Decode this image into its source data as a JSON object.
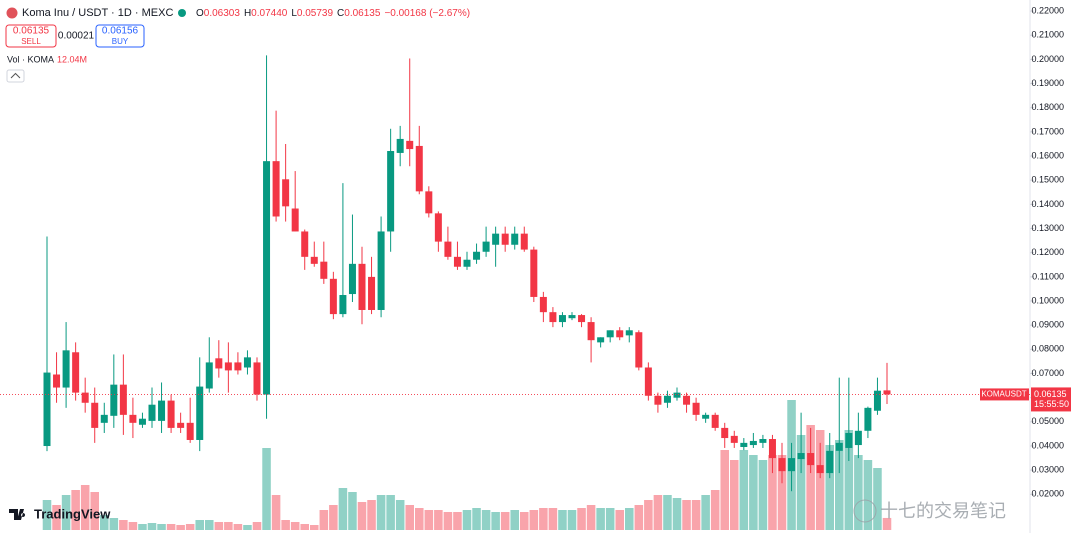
{
  "chart_data": {
    "type": "candlestick",
    "title": "Koma Inu / USDT · 1D · MEXC",
    "ohlc_labels": [
      "O",
      "H",
      "L",
      "C"
    ],
    "ohlc_values": [
      "0.06303",
      "0.07440",
      "0.05739",
      "0.06135"
    ],
    "change": "−0.00168 (−2.67%)",
    "sell": {
      "price": "0.06135",
      "label": "SELL"
    },
    "spread": "0.00021",
    "buy": {
      "price": "0.06156",
      "label": "BUY"
    },
    "volume_title": "Vol · KOMA",
    "volume_value": "12.04M",
    "symbol": "KOMAUSDT",
    "last_price": {
      "value": 0.06135,
      "label": "0.06135"
    },
    "countdown": "15:55:50",
    "brand": "TradingView",
    "watermark": "十七的交易笔记",
    "up_color": "#089981",
    "down_color": "#f23645",
    "ylim": [
      0.004,
      0.2246
    ],
    "yticks": [
      {
        "value": 0.02,
        "label": "0.02000"
      },
      {
        "value": 0.03,
        "label": "0.03000"
      },
      {
        "value": 0.04,
        "label": "0.04000"
      },
      {
        "value": 0.05,
        "label": "0.05000"
      },
      {
        "value": 0.06,
        "label": "0.06000"
      },
      {
        "value": 0.07,
        "label": "0.07000"
      },
      {
        "value": 0.08,
        "label": "0.08000"
      },
      {
        "value": 0.09,
        "label": "0.09000"
      },
      {
        "value": 0.1,
        "label": "0.10000"
      },
      {
        "value": 0.11,
        "label": "0.11000"
      },
      {
        "value": 0.12,
        "label": "0.12000"
      },
      {
        "value": 0.13,
        "label": "0.13000"
      },
      {
        "value": 0.14,
        "label": "0.14000"
      },
      {
        "value": 0.15,
        "label": "0.15000"
      },
      {
        "value": 0.16,
        "label": "0.16000"
      },
      {
        "value": 0.17,
        "label": "0.17000"
      },
      {
        "value": 0.18,
        "label": "0.18000"
      },
      {
        "value": 0.19,
        "label": "0.19000"
      },
      {
        "value": 0.2,
        "label": "0.20000"
      },
      {
        "value": 0.21,
        "label": "0.21000"
      },
      {
        "value": 0.22,
        "label": "0.22000"
      }
    ],
    "open": [
      0.04,
      0.0696,
      0.0642,
      0.0788,
      0.0621,
      0.0579,
      0.0496,
      0.0525,
      0.0654,
      0.0529,
      0.0488,
      0.0504,
      0.0504,
      0.0588,
      0.0496,
      0.0496,
      0.0425,
      0.0638,
      0.0763,
      0.0746,
      0.0746,
      0.0725,
      0.0746,
      0.0613,
      0.1579,
      0.1504,
      0.1383,
      0.1288,
      0.1183,
      0.1163,
      0.1092,
      0.0946,
      0.1029,
      0.1154,
      0.11,
      0.0963,
      0.1288,
      0.1613,
      0.1663,
      0.1642,
      0.1454,
      0.1363,
      0.1246,
      0.1183,
      0.1142,
      0.1171,
      0.1204,
      0.1233,
      0.1279,
      0.1233,
      0.1279,
      0.1213,
      0.1017,
      0.0954,
      0.0913,
      0.0929,
      0.0942,
      0.0913,
      0.0829,
      0.085,
      0.0879,
      0.0858,
      0.0871,
      0.0725,
      0.0608,
      0.0579,
      0.06,
      0.0608,
      0.0579,
      0.0513,
      0.0529,
      0.0475,
      0.0442,
      0.0396,
      0.0404,
      0.0413,
      0.0429,
      0.035,
      0.0296,
      0.0346,
      0.0371,
      0.0321,
      0.0288,
      0.038,
      0.0392,
      0.0404,
      0.0463,
      0.0546,
      0.06303
    ],
    "high": [
      0.1267,
      0.0788,
      0.0913,
      0.0829,
      0.0683,
      0.0642,
      0.0579,
      0.0779,
      0.0779,
      0.06,
      0.0538,
      0.0642,
      0.0663,
      0.0613,
      0.0538,
      0.06,
      0.0767,
      0.085,
      0.0838,
      0.0829,
      0.0788,
      0.0796,
      0.0767,
      0.2017,
      0.1788,
      0.165,
      0.1538,
      0.1296,
      0.1246,
      0.1246,
      0.1121,
      0.1488,
      0.1358,
      0.1225,
      0.1183,
      0.135,
      0.1713,
      0.1725,
      0.2004,
      0.1725,
      0.1475,
      0.1371,
      0.1308,
      0.1246,
      0.1204,
      0.1238,
      0.1308,
      0.1308,
      0.1308,
      0.1308,
      0.1308,
      0.1225,
      0.1038,
      0.0975,
      0.0954,
      0.0954,
      0.0946,
      0.0933,
      0.085,
      0.0879,
      0.0892,
      0.0892,
      0.0879,
      0.0746,
      0.0621,
      0.0629,
      0.0642,
      0.0621,
      0.06,
      0.0538,
      0.0538,
      0.0496,
      0.0463,
      0.0433,
      0.0454,
      0.0446,
      0.0446,
      0.0413,
      0.0413,
      0.0538,
      0.0475,
      0.0413,
      0.0454,
      0.0683,
      0.0683,
      0.0538,
      0.0563,
      0.0683,
      0.0744
    ],
    "low": [
      0.0379,
      0.0579,
      0.0558,
      0.0588,
      0.0538,
      0.0413,
      0.0454,
      0.0475,
      0.0446,
      0.0433,
      0.0475,
      0.0475,
      0.0454,
      0.0454,
      0.0454,
      0.0413,
      0.0379,
      0.0621,
      0.0683,
      0.0621,
      0.0696,
      0.0696,
      0.0588,
      0.0513,
      0.1329,
      0.1329,
      0.1288,
      0.1129,
      0.1142,
      0.1071,
      0.0925,
      0.0933,
      0.0996,
      0.0904,
      0.0946,
      0.0933,
      0.1204,
      0.1558,
      0.1558,
      0.1442,
      0.1346,
      0.1204,
      0.1171,
      0.1129,
      0.1129,
      0.1154,
      0.1183,
      0.1142,
      0.1204,
      0.1213,
      0.1204,
      0.0996,
      0.0913,
      0.0892,
      0.0892,
      0.0921,
      0.0892,
      0.0746,
      0.0808,
      0.0829,
      0.0838,
      0.0829,
      0.0713,
      0.0588,
      0.0538,
      0.0558,
      0.0588,
      0.0538,
      0.0504,
      0.0496,
      0.0463,
      0.0392,
      0.0392,
      0.0383,
      0.0392,
      0.0392,
      0.0288,
      0.0246,
      0.0213,
      0.0288,
      0.0288,
      0.0267,
      0.0267,
      0.0288,
      0.0338,
      0.035,
      0.0433,
      0.0529,
      0.05739
    ],
    "close": [
      0.0704,
      0.0642,
      0.0796,
      0.0621,
      0.0579,
      0.0475,
      0.0529,
      0.0654,
      0.0529,
      0.0496,
      0.0513,
      0.0571,
      0.0588,
      0.0475,
      0.0475,
      0.0425,
      0.0646,
      0.0746,
      0.0721,
      0.0713,
      0.0713,
      0.0767,
      0.0613,
      0.1579,
      0.135,
      0.1392,
      0.1288,
      0.1183,
      0.1154,
      0.1092,
      0.0946,
      0.1025,
      0.1154,
      0.0963,
      0.0963,
      0.1288,
      0.1621,
      0.1671,
      0.1629,
      0.1454,
      0.1363,
      0.1246,
      0.1183,
      0.1142,
      0.1171,
      0.1204,
      0.1246,
      0.1279,
      0.1233,
      0.1279,
      0.1213,
      0.1017,
      0.0954,
      0.0913,
      0.0942,
      0.0942,
      0.0913,
      0.0838,
      0.085,
      0.0879,
      0.085,
      0.0879,
      0.0725,
      0.0608,
      0.0571,
      0.0608,
      0.0621,
      0.0571,
      0.0529,
      0.0529,
      0.0475,
      0.0433,
      0.0413,
      0.0413,
      0.0421,
      0.0429,
      0.035,
      0.0296,
      0.035,
      0.0371,
      0.0321,
      0.0288,
      0.038,
      0.0413,
      0.0454,
      0.0463,
      0.0558,
      0.0629,
      0.06135
    ],
    "volume": [
      30,
      25,
      35,
      40,
      45,
      38,
      15,
      12,
      10,
      8,
      6,
      7,
      6,
      6,
      5,
      6,
      10,
      10,
      8,
      8,
      6,
      5,
      8,
      82,
      35,
      10,
      8,
      6,
      5,
      20,
      25,
      42,
      38,
      28,
      30,
      35,
      35,
      30,
      25,
      22,
      20,
      20,
      18,
      18,
      20,
      22,
      20,
      18,
      18,
      20,
      18,
      20,
      22,
      22,
      20,
      20,
      22,
      25,
      22,
      22,
      20,
      22,
      25,
      30,
      35,
      35,
      32,
      30,
      30,
      35,
      40,
      80,
      70,
      80,
      75,
      70,
      75,
      75,
      130,
      95,
      105,
      100,
      85,
      90,
      100,
      75,
      70,
      62,
      12.04
    ]
  }
}
